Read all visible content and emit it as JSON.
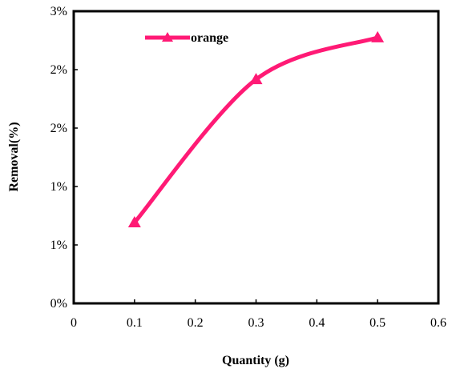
{
  "chart_data": {
    "type": "line",
    "title": "",
    "xlabel": "Quantity (g)",
    "ylabel": "Removal(%)",
    "xlim": [
      0,
      0.6
    ],
    "ylim": [
      0,
      3
    ],
    "grid": false,
    "legend_placement": "top-left",
    "x_ticks": [
      "0",
      "0.1",
      "0.2",
      "0.3",
      "0.4",
      "0.5",
      "0.6"
    ],
    "y_ticks": [
      "0%",
      "1%",
      "1%",
      "2%",
      "2%",
      "3%"
    ],
    "series": [
      {
        "name": "orange",
        "color": "#ff1a75",
        "marker": "triangle",
        "x": [
          0.1,
          0.3,
          0.5
        ],
        "y": [
          0.83,
          2.3,
          2.73
        ]
      }
    ]
  }
}
